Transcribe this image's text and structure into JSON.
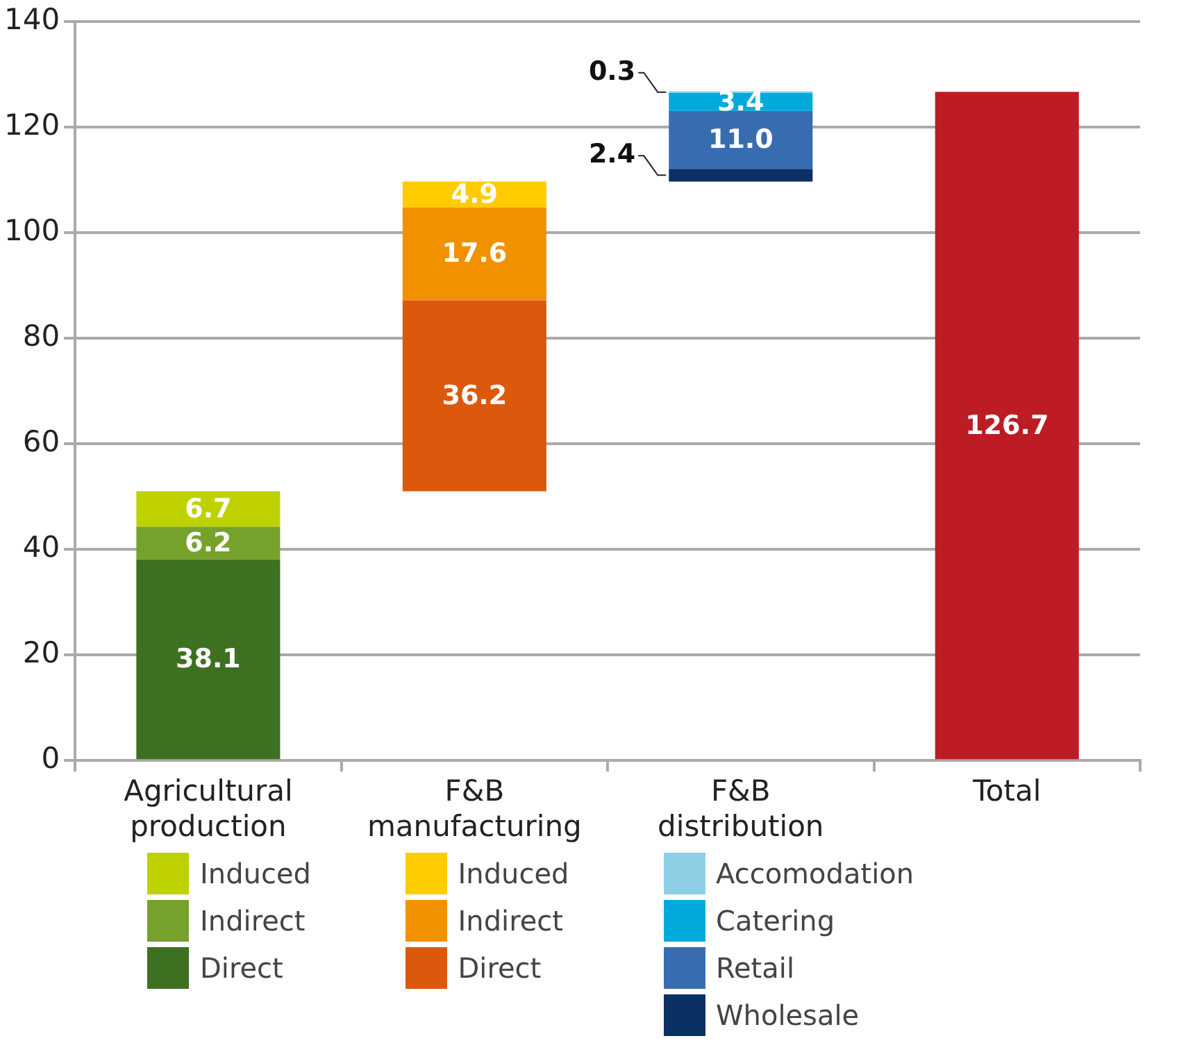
{
  "chart_data": {
    "type": "bar",
    "categories": [
      "Agricultural production",
      "F&B manufacturing",
      "F&B distribution",
      "Total"
    ],
    "series": [
      {
        "name": "Direct",
        "color": "#3e7021",
        "values": [
          38.1,
          null,
          null,
          null
        ],
        "base": [
          0,
          null,
          null,
          null
        ],
        "value_labels": [
          "38.1",
          null,
          null,
          null
        ]
      },
      {
        "name": "Indirect",
        "color": "#76a22c",
        "values": [
          6.2,
          null,
          null,
          null
        ],
        "base": [
          38.1,
          null,
          null,
          null
        ],
        "value_labels": [
          "6.2",
          null,
          null,
          null
        ]
      },
      {
        "name": "Induced",
        "color": "#bfd200",
        "values": [
          6.7,
          null,
          null,
          null
        ],
        "base": [
          44.3,
          null,
          null,
          null
        ],
        "value_labels": [
          "6.7",
          null,
          null,
          null
        ]
      },
      {
        "name": "Direct",
        "color": "#dc580d",
        "values": [
          null,
          36.2,
          null,
          null
        ],
        "base": [
          null,
          51.0,
          null,
          null
        ],
        "value_labels": [
          null,
          "36.2",
          null,
          null
        ]
      },
      {
        "name": "Indirect",
        "color": "#f29100",
        "values": [
          null,
          17.6,
          null,
          null
        ],
        "base": [
          null,
          87.2,
          null,
          null
        ],
        "value_labels": [
          null,
          "17.6",
          null,
          null
        ]
      },
      {
        "name": "Induced",
        "color": "#ffcc00",
        "values": [
          null,
          4.9,
          null,
          null
        ],
        "base": [
          null,
          104.8,
          null,
          null
        ],
        "value_labels": [
          null,
          "4.9",
          null,
          null
        ]
      },
      {
        "name": "Wholesale",
        "color": "#0b3064",
        "values": [
          null,
          null,
          2.4,
          null
        ],
        "base": [
          null,
          null,
          109.7,
          null
        ],
        "value_labels": [
          null,
          null,
          "2.4",
          null
        ]
      },
      {
        "name": "Retail",
        "color": "#386cb0",
        "values": [
          null,
          null,
          11.0,
          null
        ],
        "base": [
          null,
          null,
          112.1,
          null
        ],
        "value_labels": [
          null,
          null,
          "11.0",
          null
        ]
      },
      {
        "name": "Catering",
        "color": "#00aadd",
        "values": [
          null,
          null,
          3.4,
          null
        ],
        "base": [
          null,
          null,
          123.1,
          null
        ],
        "value_labels": [
          null,
          null,
          "3.4",
          null
        ]
      },
      {
        "name": "Accomodation",
        "color": "#8ecfe6",
        "values": [
          null,
          null,
          0.3,
          null
        ],
        "base": [
          null,
          null,
          126.5,
          null
        ],
        "value_labels": [
          null,
          null,
          "0.3",
          null
        ]
      },
      {
        "color": "#bd1c25",
        "values": [
          null,
          null,
          null,
          126.7
        ],
        "base": [
          null,
          null,
          null,
          0
        ],
        "value_labels": [
          null,
          null,
          null,
          "126.7"
        ]
      }
    ],
    "ylim": [
      0,
      140
    ],
    "yticks": [
      0,
      20,
      40,
      60,
      80,
      100,
      120,
      140
    ],
    "grid": "y",
    "legend": "bottom"
  }
}
